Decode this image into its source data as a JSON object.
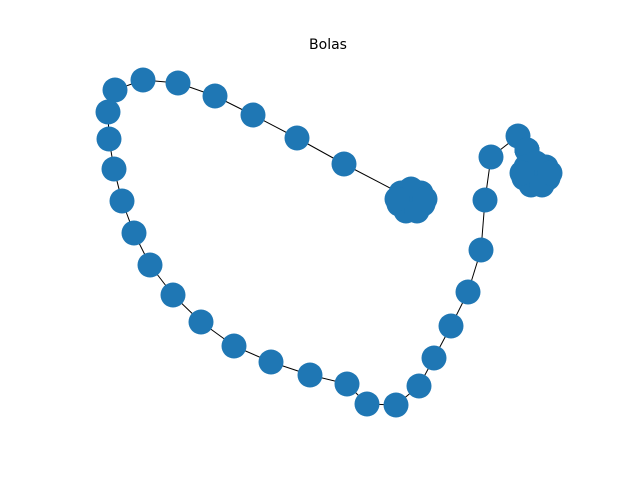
{
  "chart_data": {
    "type": "network",
    "title": "Bolas",
    "colors": {
      "node": "#1f77b4",
      "edge": "#000000"
    },
    "nodes": [
      "path-1",
      "path-2",
      "path-3",
      "path-4",
      "path-5",
      "path-6",
      "path-7",
      "path-8",
      "path-9",
      "path-10",
      "path-11",
      "path-12",
      "path-13",
      "path-14",
      "path-15",
      "path-16",
      "path-17",
      "path-18",
      "path-19",
      "path-20",
      "path-21",
      "path-22",
      "path-23",
      "path-24",
      "path-25",
      "path-26",
      "path-27",
      "path-28",
      "path-29",
      "path-30",
      "path-31",
      "path-32",
      "path-33",
      "path-34",
      "left-clique",
      "right-clique"
    ],
    "clique_sizes": {
      "left-clique": 10,
      "right-clique": 10
    },
    "edges": [
      [
        "left-clique",
        "path-1"
      ],
      [
        "path-1",
        "path-2"
      ],
      [
        "path-2",
        "path-3"
      ],
      [
        "path-3",
        "path-4"
      ],
      [
        "path-4",
        "path-5"
      ],
      [
        "path-5",
        "path-6"
      ],
      [
        "path-6",
        "path-7"
      ],
      [
        "path-7",
        "path-8"
      ],
      [
        "path-8",
        "path-9"
      ],
      [
        "path-9",
        "path-10"
      ],
      [
        "path-10",
        "path-11"
      ],
      [
        "path-11",
        "path-12"
      ],
      [
        "path-12",
        "path-13"
      ],
      [
        "path-13",
        "path-14"
      ],
      [
        "path-14",
        "path-15"
      ],
      [
        "path-15",
        "path-16"
      ],
      [
        "path-16",
        "path-17"
      ],
      [
        "path-17",
        "path-18"
      ],
      [
        "path-18",
        "path-19"
      ],
      [
        "path-19",
        "path-20"
      ],
      [
        "path-20",
        "path-21"
      ],
      [
        "path-21",
        "path-22"
      ],
      [
        "path-22",
        "path-23"
      ],
      [
        "path-23",
        "path-24"
      ],
      [
        "path-24",
        "path-25"
      ],
      [
        "path-25",
        "path-26"
      ],
      [
        "path-26",
        "path-27"
      ],
      [
        "path-27",
        "path-28"
      ],
      [
        "path-28",
        "path-29"
      ],
      [
        "path-29",
        "path-30"
      ],
      [
        "path-30",
        "path-31"
      ],
      [
        "path-31",
        "path-32"
      ],
      [
        "path-32",
        "path-33"
      ],
      [
        "path-33",
        "path-34"
      ],
      [
        "path-34",
        "right-clique"
      ]
    ]
  }
}
